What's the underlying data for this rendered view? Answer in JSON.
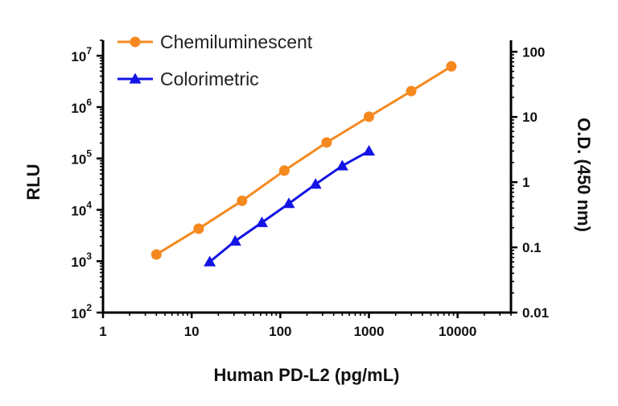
{
  "chart_data": {
    "type": "line",
    "xlabel": "Human PD-L2 (pg/mL)",
    "ylabel_left": "RLU",
    "ylabel_right": "O.D. (450 nm)",
    "x_scale": "log",
    "y_scale_left": "log",
    "y_scale_right": "log",
    "xlim": [
      1,
      40000
    ],
    "ylim_left": [
      100,
      20000000
    ],
    "ylim_right": [
      0.01,
      150
    ],
    "x_ticks": [
      "1",
      "10",
      "100",
      "1000",
      "10000"
    ],
    "y_ticks_left": [
      {
        "base": "10",
        "exp": "2"
      },
      {
        "base": "10",
        "exp": "3"
      },
      {
        "base": "10",
        "exp": "4"
      },
      {
        "base": "10",
        "exp": "5"
      },
      {
        "base": "10",
        "exp": "6"
      },
      {
        "base": "10",
        "exp": "7"
      }
    ],
    "y_ticks_right": [
      "0.01",
      "0.1",
      "1",
      "10",
      "100"
    ],
    "legend_position": "top-left",
    "grid": false,
    "series": [
      {
        "name": "Chemiluminescent",
        "axis": "left",
        "color": "#f5891f",
        "marker": "circle",
        "x": [
          4,
          12,
          37,
          111,
          333,
          1000,
          3000,
          8500
        ],
        "y": [
          1350,
          4300,
          15000,
          58000,
          205000,
          650000,
          2050000,
          6200000
        ]
      },
      {
        "name": "Colorimetric",
        "axis": "right",
        "color": "#1414e6",
        "marker": "triangle",
        "x": [
          16,
          31,
          62,
          125,
          250,
          500,
          1000
        ],
        "y": [
          0.06,
          0.125,
          0.24,
          0.47,
          0.93,
          1.78,
          3.0
        ]
      }
    ]
  }
}
